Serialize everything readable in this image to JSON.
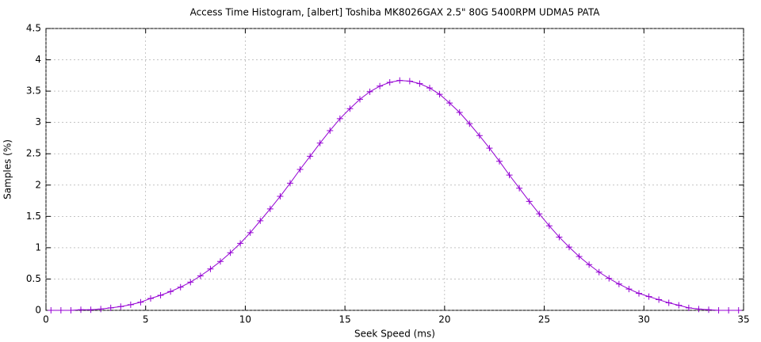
{
  "chart_data": {
    "type": "line",
    "title": "Access Time Histogram, [albert] Toshiba MK8026GAX 2.5\" 80G 5400RPM UDMA5 PATA",
    "x_label": "Seek Speed (ms)",
    "y_label": "Samples (%)",
    "x": [
      0.25,
      0.75,
      1.25,
      1.75,
      2.25,
      2.75,
      3.25,
      3.75,
      4.25,
      4.75,
      5.25,
      5.75,
      6.25,
      6.75,
      7.25,
      7.75,
      8.25,
      8.75,
      9.25,
      9.75,
      10.25,
      10.75,
      11.25,
      11.75,
      12.25,
      12.75,
      13.25,
      13.75,
      14.25,
      14.75,
      15.25,
      15.75,
      16.25,
      16.75,
      17.25,
      17.75,
      18.25,
      18.75,
      19.25,
      19.75,
      20.25,
      20.75,
      21.25,
      21.75,
      22.25,
      22.75,
      23.25,
      23.75,
      24.25,
      24.75,
      25.25,
      25.75,
      26.25,
      26.75,
      27.25,
      27.75,
      28.25,
      28.75,
      29.25,
      29.75,
      30.25,
      30.75,
      31.25,
      31.75,
      32.25,
      32.75,
      33.25,
      33.75,
      34.25,
      34.75
    ],
    "series": [
      {
        "color": "#9400d3",
        "values": [
          0,
          0,
          0,
          0.01,
          0.01,
          0.02,
          0.04,
          0.06,
          0.09,
          0.13,
          0.19,
          0.24,
          0.3,
          0.37,
          0.45,
          0.55,
          0.66,
          0.78,
          0.92,
          1.07,
          1.24,
          1.43,
          1.62,
          1.82,
          2.03,
          2.25,
          2.46,
          2.67,
          2.87,
          3.06,
          3.22,
          3.37,
          3.49,
          3.58,
          3.64,
          3.67,
          3.66,
          3.62,
          3.55,
          3.45,
          3.31,
          3.16,
          2.98,
          2.79,
          2.59,
          2.38,
          2.16,
          1.95,
          1.74,
          1.54,
          1.35,
          1.17,
          1.01,
          0.86,
          0.73,
          0.61,
          0.51,
          0.42,
          0.34,
          0.27,
          0.22,
          0.17,
          0.12,
          0.08,
          0.04,
          0.02,
          0.01,
          0,
          0,
          0
        ]
      }
    ],
    "xlim": [
      0,
      35
    ],
    "xticks": [
      0,
      5,
      10,
      15,
      20,
      25,
      30,
      35
    ],
    "ylim": [
      0,
      4.5
    ],
    "yticks": [
      0,
      0.5,
      1,
      1.5,
      2,
      2.5,
      3,
      3.5,
      4,
      4.5
    ],
    "grid": true
  }
}
